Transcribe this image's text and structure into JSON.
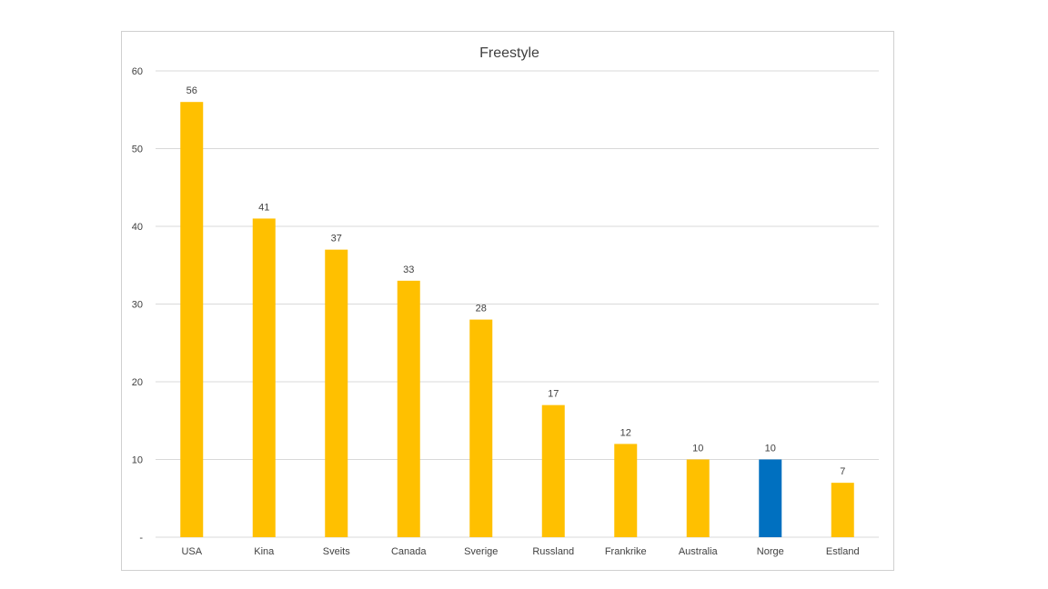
{
  "chart_data": {
    "type": "bar",
    "title": "Freestyle",
    "xlabel": "",
    "ylabel": "",
    "categories": [
      "USA",
      "Kina",
      "Sveits",
      "Canada",
      "Sverige",
      "Russland",
      "Frankrike",
      "Australia",
      "Norge",
      "Estland"
    ],
    "values": [
      56,
      41,
      37,
      33,
      28,
      17,
      12,
      10,
      10,
      7
    ],
    "bar_colors": [
      "#FFC000",
      "#FFC000",
      "#FFC000",
      "#FFC000",
      "#FFC000",
      "#FFC000",
      "#FFC000",
      "#FFC000",
      "#0070C0",
      "#FFC000"
    ],
    "ylim": [
      0,
      60
    ],
    "yticks": [
      0,
      10,
      20,
      30,
      40,
      50,
      60
    ],
    "ytick_labels": [
      "-",
      "10",
      "20",
      "30",
      "40",
      "50",
      "60"
    ],
    "data_labels": true,
    "grid": true,
    "legend": "none"
  }
}
